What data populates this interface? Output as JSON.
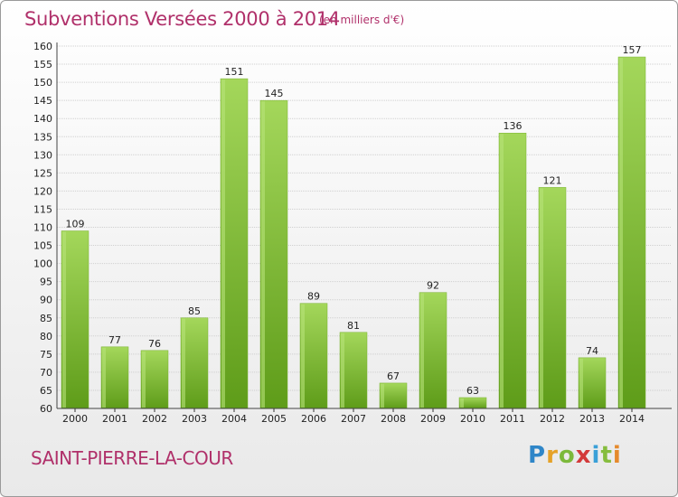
{
  "header": {
    "title": "Subventions Versées 2000 à 2014",
    "unit": "(en milliers d'€)"
  },
  "footer": {
    "commune": "SAINT-PIERRE-LA-COUR",
    "logo": "Proxiti"
  },
  "colors": {
    "title": "#b0306a",
    "bar_light": "#a2d45a",
    "bar_dark": "#5f9e1a",
    "grid": "#cfcfcf"
  },
  "chart_data": {
    "type": "bar",
    "title": "Subventions Versées 2000 à 2014",
    "subtitle": "(en milliers d'€)",
    "xlabel": "",
    "ylabel": "",
    "categories": [
      "2000",
      "2001",
      "2002",
      "2003",
      "2004",
      "2005",
      "2006",
      "2007",
      "2008",
      "2009",
      "2010",
      "2011",
      "2012",
      "2013",
      "2014"
    ],
    "values": [
      109,
      77,
      76,
      85,
      151,
      145,
      89,
      81,
      67,
      92,
      63,
      136,
      121,
      74,
      157
    ],
    "ylim": [
      60,
      160
    ],
    "ytick_step": 5,
    "grid": true,
    "legend": "none"
  }
}
